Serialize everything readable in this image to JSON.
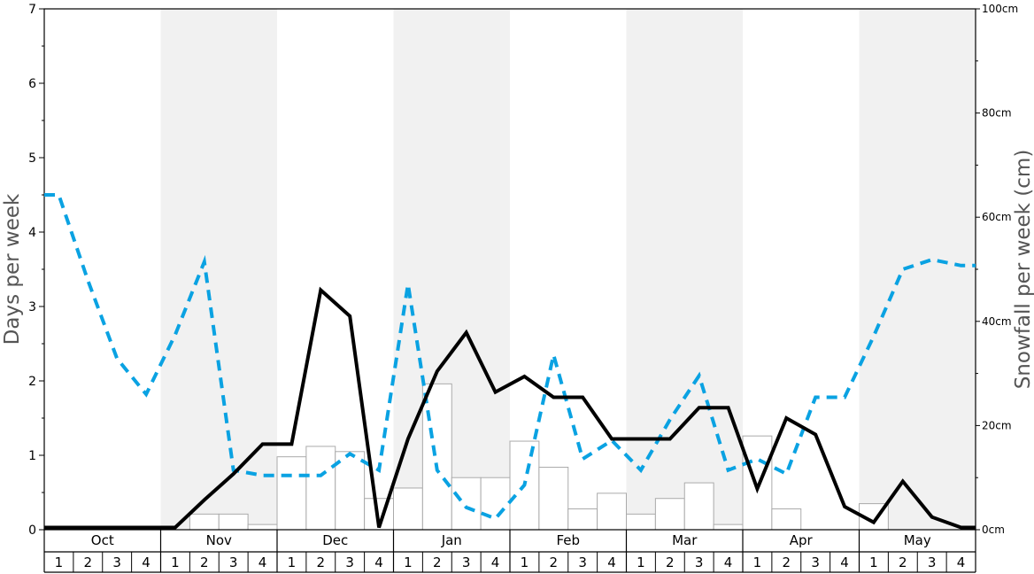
{
  "chart_data": {
    "type": "bar+line",
    "left_axis": {
      "label": "Days per week",
      "ylim": [
        0,
        7
      ],
      "ticks": [
        "0",
        "1",
        "2",
        "3",
        "4",
        "5",
        "6",
        "7"
      ]
    },
    "right_axis": {
      "label": "Snowfall per week (cm)",
      "ylim": [
        0,
        100
      ],
      "ticks": [
        "0cm",
        "20cm",
        "40cm",
        "60cm",
        "80cm",
        "100cm"
      ]
    },
    "months": [
      "Oct",
      "Nov",
      "Dec",
      "Jan",
      "Feb",
      "Mar",
      "Apr",
      "May"
    ],
    "weeks": [
      "1",
      "2",
      "3",
      "4"
    ],
    "shaded_months": [
      "Nov",
      "Jan",
      "Mar",
      "May"
    ],
    "series": [
      {
        "style": "bars",
        "axis": "right",
        "values": [
          0,
          0,
          0,
          0,
          0,
          3,
          3,
          1,
          14,
          16,
          15,
          6,
          8,
          28,
          10,
          10,
          17,
          12,
          4,
          7,
          3,
          6,
          9,
          1,
          18,
          4,
          0,
          0,
          5,
          0,
          0,
          0
        ]
      },
      {
        "style": "solid-line",
        "color": "#000000",
        "axis": "left",
        "values": [
          0.03,
          0.03,
          0.03,
          0.03,
          0.03,
          0.4,
          0.75,
          1.15,
          1.15,
          3.22,
          2.87,
          0.03,
          1.22,
          2.13,
          2.65,
          1.85,
          2.06,
          1.78,
          1.78,
          1.22,
          1.22,
          1.22,
          1.64,
          1.64,
          0.55,
          1.5,
          1.28,
          0.31,
          0.1,
          0.65,
          0.17,
          0.03
        ]
      },
      {
        "style": "dashed-line",
        "color": "#0aa2e2",
        "axis": "left",
        "values": [
          4.5,
          3.35,
          2.3,
          1.82,
          2.62,
          3.6,
          0.8,
          0.73,
          0.73,
          0.73,
          1.02,
          0.8,
          3.3,
          0.8,
          0.3,
          0.15,
          0.6,
          2.35,
          0.95,
          1.2,
          0.8,
          1.48,
          2.07,
          0.8,
          0.95,
          0.75,
          1.78,
          1.78,
          2.6,
          3.5,
          3.63,
          3.55
        ]
      }
    ]
  }
}
